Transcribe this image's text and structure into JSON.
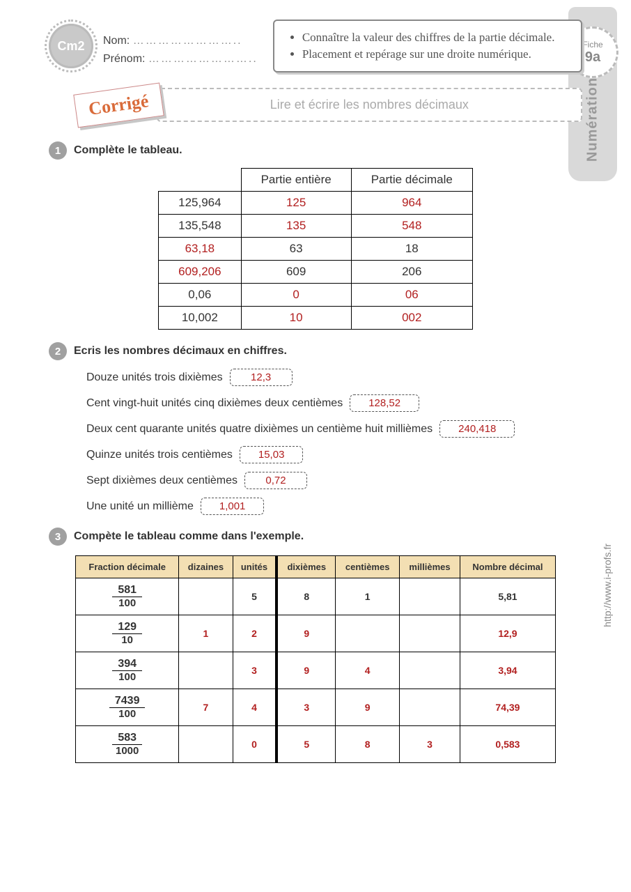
{
  "colors": {
    "answer_red": "#b22020",
    "tab_bg": "#d9d9d9",
    "table3_header_bg": "#f3dfb3"
  },
  "header": {
    "level_badge": "Cm2",
    "name_label": "Nom:",
    "firstname_label": "Prénom:",
    "dotted_line": "……………………..",
    "objectives": [
      "Connaître la valeur des chiffres de la partie décimale.",
      "Placement et repérage sur une droite numérique."
    ]
  },
  "tab": {
    "fiche_label": "Fiche",
    "fiche_num": "9a",
    "vertical": "Numération"
  },
  "side_url": "http://www.i-profs.fr",
  "corrige_label": "Corrigé",
  "subtitle": "Lire et écrire les nombres décimaux",
  "ex1": {
    "num": "1",
    "title": "Complète le tableau.",
    "headers": [
      "",
      "Partie entière",
      "Partie décimale"
    ],
    "rows": [
      {
        "cells": [
          "125,964",
          "125",
          "964"
        ],
        "red": [
          false,
          true,
          true
        ]
      },
      {
        "cells": [
          "135,548",
          "135",
          "548"
        ],
        "red": [
          false,
          true,
          true
        ]
      },
      {
        "cells": [
          "63,18",
          "63",
          "18"
        ],
        "red": [
          true,
          false,
          false
        ]
      },
      {
        "cells": [
          "609,206",
          "609",
          "206"
        ],
        "red": [
          true,
          false,
          false
        ]
      },
      {
        "cells": [
          "0,06",
          "0",
          "06"
        ],
        "red": [
          false,
          true,
          true
        ]
      },
      {
        "cells": [
          "10,002",
          "10",
          "002"
        ],
        "red": [
          false,
          true,
          true
        ]
      }
    ]
  },
  "ex2": {
    "num": "2",
    "title": "Ecris les nombres décimaux en chiffres.",
    "items": [
      {
        "text": "Douze unités trois dixièmes",
        "answer": "12,3"
      },
      {
        "text": "Cent vingt-huit unités cinq dixièmes deux centièmes",
        "answer": "128,52"
      },
      {
        "text": "Deux cent quarante unités quatre dixièmes un centième huit millièmes",
        "answer": "240,418"
      },
      {
        "text": "Quinze unités trois centièmes",
        "answer": "15,03"
      },
      {
        "text": "Sept dixièmes deux centièmes",
        "answer": "0,72"
      },
      {
        "text": "Une unité un millième",
        "answer": "1,001"
      }
    ]
  },
  "ex3": {
    "num": "3",
    "title": "Compète le tableau comme dans l'exemple.",
    "headers": [
      "Fraction décimale",
      "dizaines",
      "unités",
      "dixièmes",
      "centièmes",
      "millièmes",
      "Nombre décimal"
    ],
    "sep_after_col": 2,
    "rows": [
      {
        "num": "581",
        "den": "100",
        "d": "",
        "u": "5",
        "dx": "8",
        "c": "1",
        "m": "",
        "dec": "5,81",
        "is_example": true
      },
      {
        "num": "129",
        "den": "10",
        "d": "1",
        "u": "2",
        "dx": "9",
        "c": "",
        "m": "",
        "dec": "12,9",
        "is_example": false
      },
      {
        "num": "394",
        "den": "100",
        "d": "",
        "u": "3",
        "dx": "9",
        "c": "4",
        "m": "",
        "dec": "3,94",
        "is_example": false
      },
      {
        "num": "7439",
        "den": "100",
        "d": "7",
        "u": "4",
        "dx": "3",
        "c": "9",
        "m": "",
        "dec": "74,39",
        "is_example": false
      },
      {
        "num": "583",
        "den": "1000",
        "d": "",
        "u": "0",
        "dx": "5",
        "c": "8",
        "m": "3",
        "dec": "0,583",
        "is_example": false
      }
    ]
  }
}
